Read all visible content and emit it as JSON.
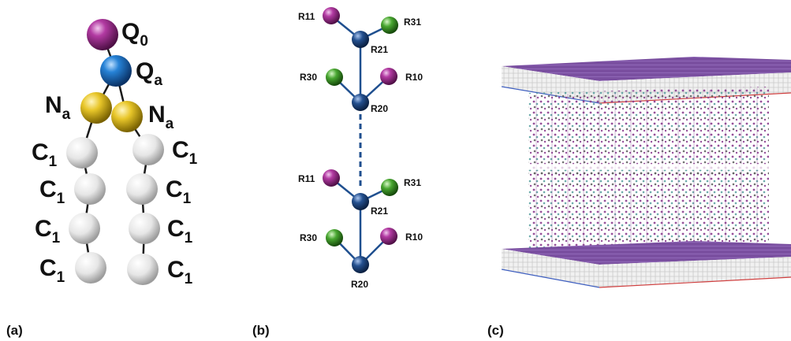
{
  "panels": {
    "a": {
      "tag": "(a)",
      "labels": {
        "q0": {
          "main": "Q",
          "sub": "0"
        },
        "qa": {
          "main": "Q",
          "sub": "a"
        },
        "na_left": {
          "main": "N",
          "sub": "a"
        },
        "na_right": {
          "main": "N",
          "sub": "a"
        },
        "c_left": [
          {
            "main": "C",
            "sub": "1"
          },
          {
            "main": "C",
            "sub": "1"
          },
          {
            "main": "C",
            "sub": "1"
          },
          {
            "main": "C",
            "sub": "1"
          }
        ],
        "c_right": [
          {
            "main": "C",
            "sub": "1"
          },
          {
            "main": "C",
            "sub": "1"
          },
          {
            "main": "C",
            "sub": "1"
          },
          {
            "main": "C",
            "sub": "1"
          }
        ]
      }
    },
    "b": {
      "tag": "(b)",
      "top_unit": {
        "r11": "R11",
        "r31": "R31",
        "r21": "R21",
        "r30": "R30",
        "r10": "R10",
        "r20": "R20"
      },
      "bottom_unit": {
        "r11": "R11",
        "r31": "R31",
        "r21": "R21",
        "r30": "R30",
        "r10": "R10",
        "r20": "R20"
      }
    },
    "c": {
      "tag": "(c)"
    }
  },
  "colors": {
    "purple_bead": "#9b2a8c",
    "blue_bead": "#1f6fbf",
    "yellow_bead": "#e0c020",
    "white_bead": "#e8e8e8",
    "green_bead": "#3a9a2a",
    "dark_blue_bead": "#1c3f7a",
    "bond": "#1a1a1a",
    "bond_b": "#1f4f8f",
    "slab_top": "#7a4fa0"
  }
}
